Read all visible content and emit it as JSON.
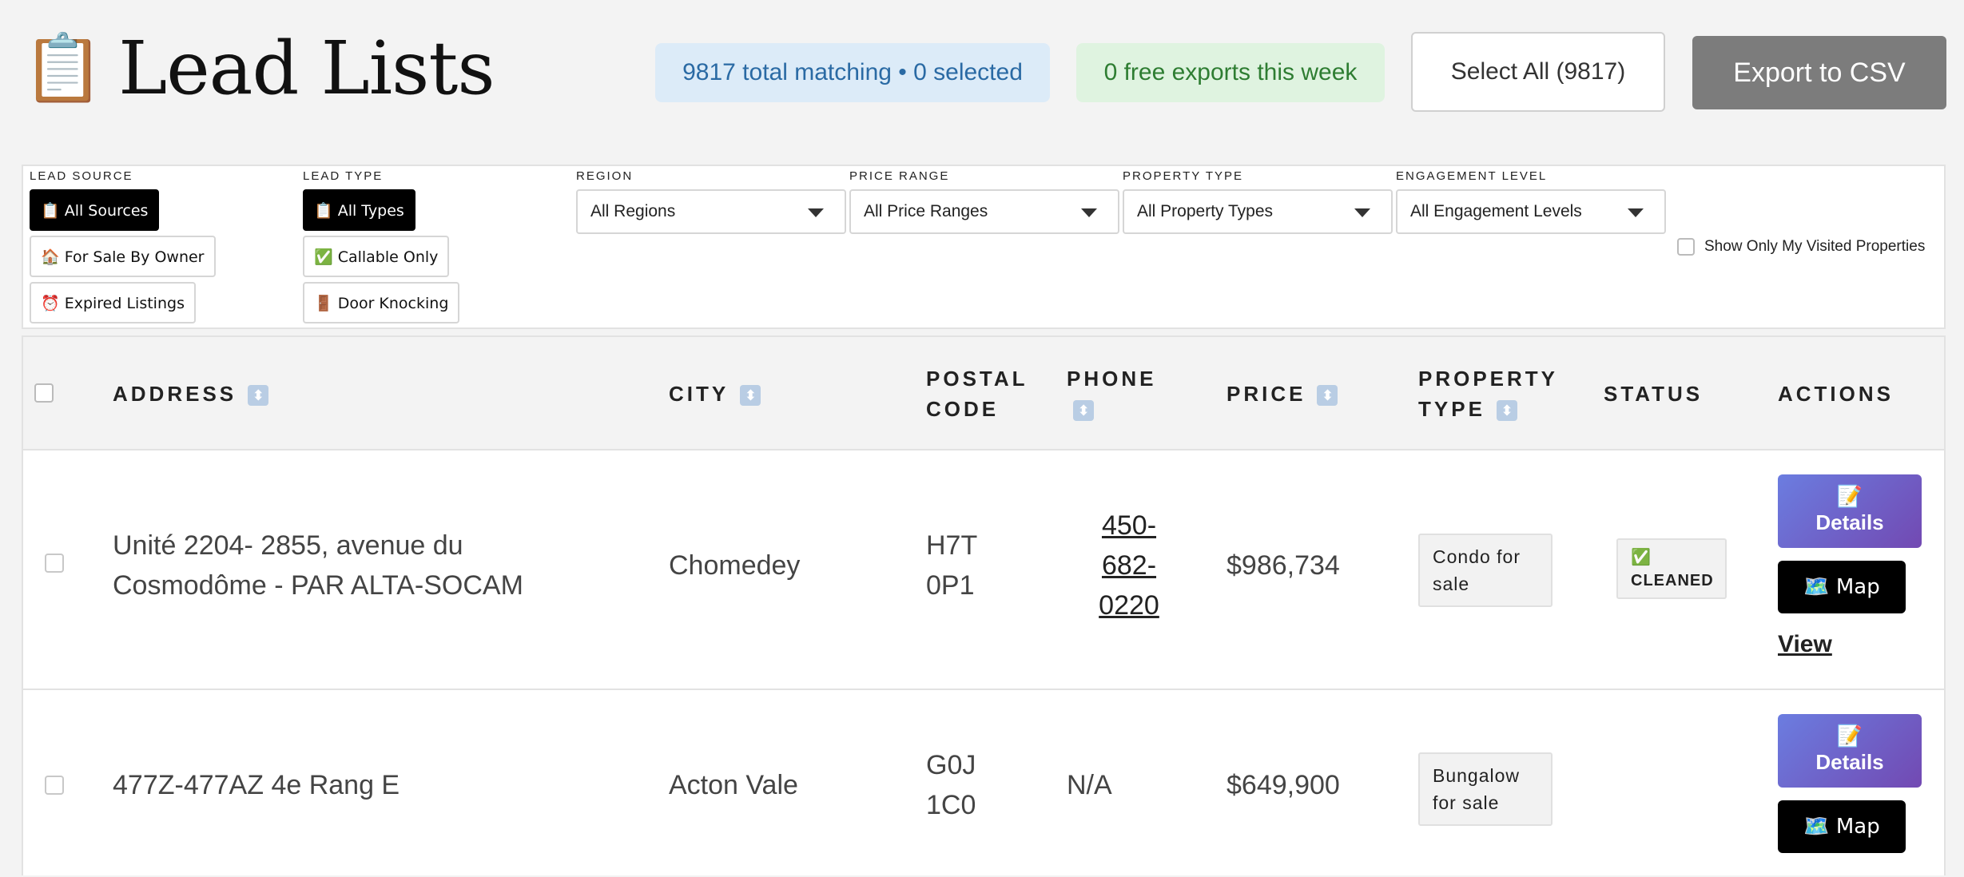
{
  "header": {
    "title_icon": "📋",
    "title": "Lead Lists",
    "total_matching": "9817 total matching • 0 selected",
    "free_exports": "0 free exports this week",
    "select_all_label": "Select All (9817)",
    "export_label": "Export to CSV"
  },
  "filters": {
    "lead_source": {
      "label": "LEAD SOURCE",
      "options": [
        "📋 All Sources",
        "🏠 For Sale By Owner",
        "⏰ Expired Listings"
      ],
      "active": "📋 All Sources"
    },
    "lead_type": {
      "label": "LEAD TYPE",
      "options": [
        "📋 All Types",
        "✅ Callable Only",
        "🚪 Door Knocking"
      ],
      "active": "📋 All Types"
    },
    "region": {
      "label": "REGION",
      "value": "All Regions"
    },
    "price_range": {
      "label": "PRICE RANGE",
      "value": "All Price Ranges"
    },
    "property_type": {
      "label": "PROPERTY TYPE",
      "value": "All Property Types"
    },
    "engagement_level": {
      "label": "ENGAGEMENT LEVEL",
      "value": "All Engagement Levels"
    },
    "visited_label": "Show Only My Visited Properties"
  },
  "table": {
    "headers": {
      "address": "ADDRESS",
      "city": "CITY",
      "postal_line1": "POSTAL",
      "postal_line2": "CODE",
      "phone": "PHONE",
      "price": "PRICE",
      "ptype_line1": "PROPERTY",
      "ptype_line2": "TYPE",
      "status": "STATUS",
      "actions": "ACTIONS"
    },
    "sort_icon": "⬍",
    "rows": [
      {
        "address_line1": "Unité 2204- 2855, avenue du",
        "address_line2": "Cosmodôme - PAR ALTA-SOCAM",
        "city": "Chomedey",
        "postal_line1": "H7T",
        "postal_line2": "0P1",
        "phone_line1": "450-",
        "phone_line2": "682-",
        "phone_line3": "0220",
        "price": "$986,734",
        "ptype_line1": "Condo for",
        "ptype_line2": "sale",
        "status_icon": "✅",
        "status_text": "CLEANED",
        "details_icon": "📝",
        "details_label": "Details",
        "map_label": "🗺️ Map",
        "view_label": "View"
      },
      {
        "address": "477Z-477AZ 4e Rang E",
        "city": "Acton Vale",
        "postal_line1": "G0J",
        "postal_line2": "1C0",
        "phone": "N/A",
        "price": "$649,900",
        "ptype_line1": "Bungalow",
        "ptype_line2": "for sale",
        "details_icon": "📝",
        "details_label": "Details",
        "map_label": "🗺️ Map"
      }
    ]
  }
}
